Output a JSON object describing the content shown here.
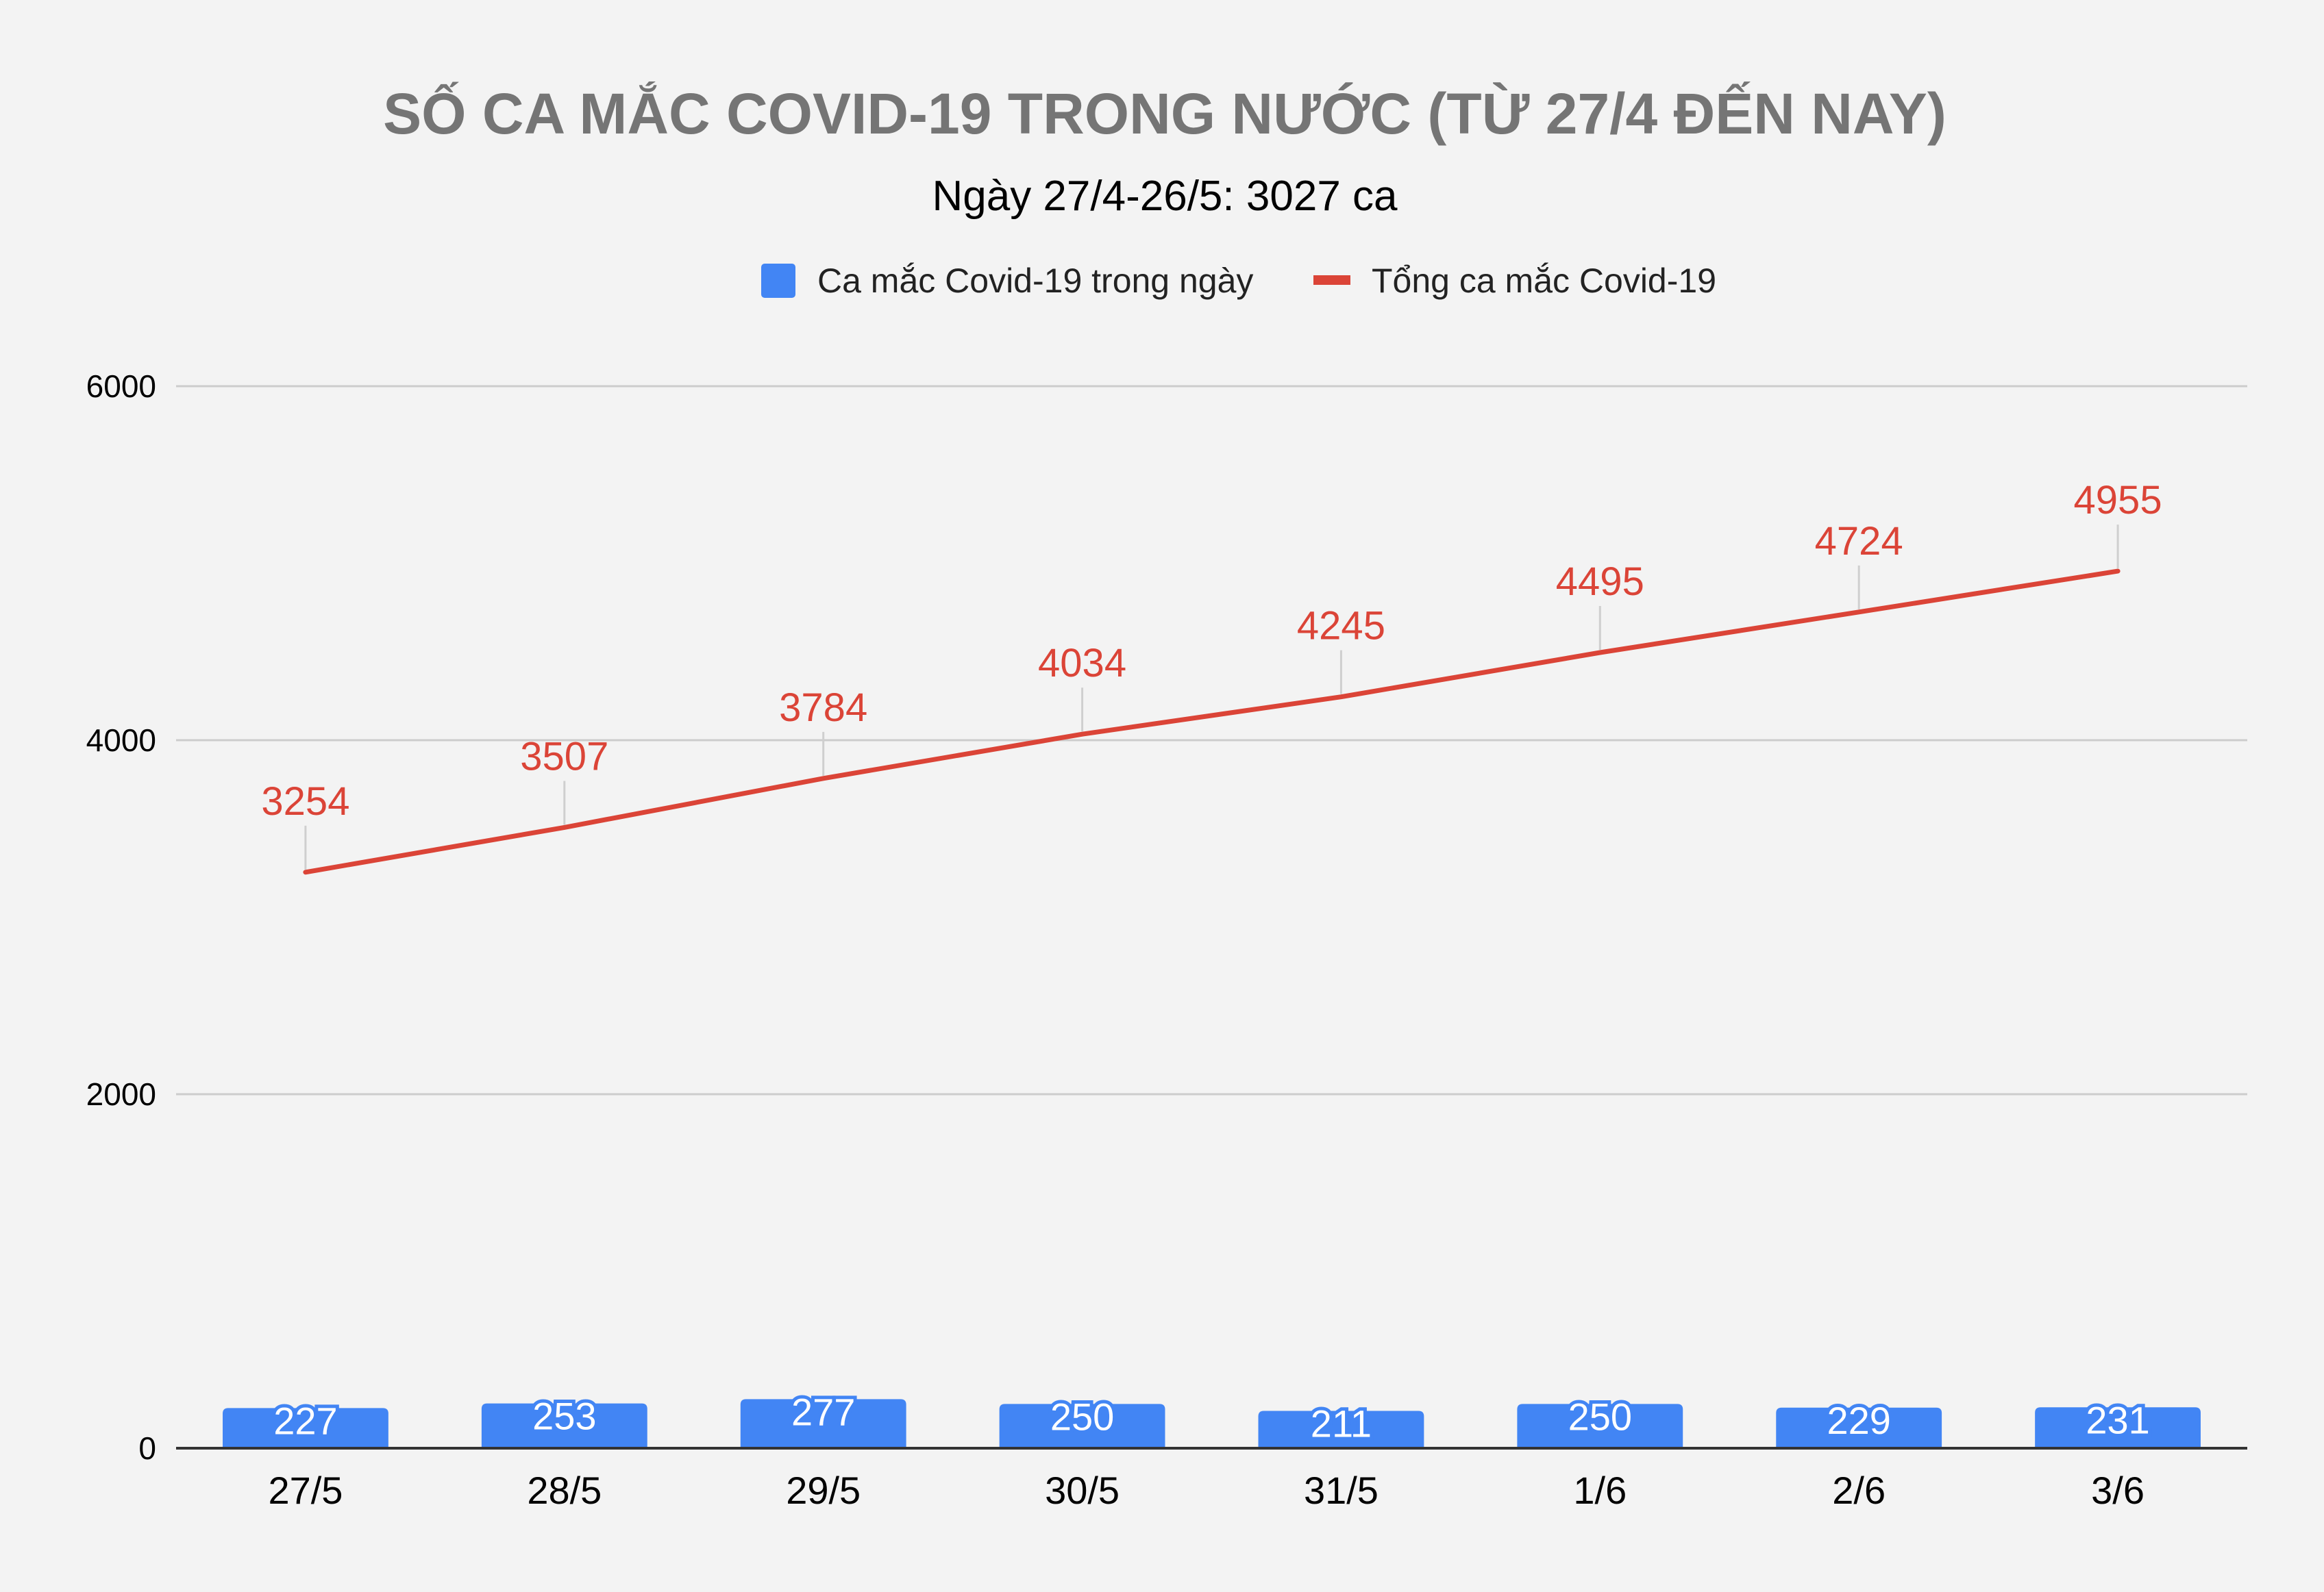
{
  "chart_data": {
    "type": "bar",
    "title": "SỐ CA MẮC COVID-19 TRONG NƯỚC (TỪ 27/4 ĐẾN NAY)",
    "subtitle": "Ngày 27/4-26/5: 3027 ca",
    "categories": [
      "27/5",
      "28/5",
      "29/5",
      "30/5",
      "31/5",
      "1/6",
      "2/6",
      "3/6"
    ],
    "series": [
      {
        "name": "Ca mắc Covid-19 trong ngày",
        "type": "bar",
        "color": "#4285f4",
        "values": [
          227,
          253,
          277,
          250,
          211,
          250,
          229,
          231
        ]
      },
      {
        "name": "Tổng ca mắc Covid-19",
        "type": "line",
        "color": "#db4437",
        "values": [
          3254,
          3507,
          3784,
          4034,
          4245,
          4495,
          4724,
          4955
        ]
      }
    ],
    "ylim": [
      0,
      6000
    ],
    "yticks": [
      0,
      2000,
      4000,
      6000
    ],
    "legend_position": "top",
    "grid": true,
    "data_labels": true
  }
}
